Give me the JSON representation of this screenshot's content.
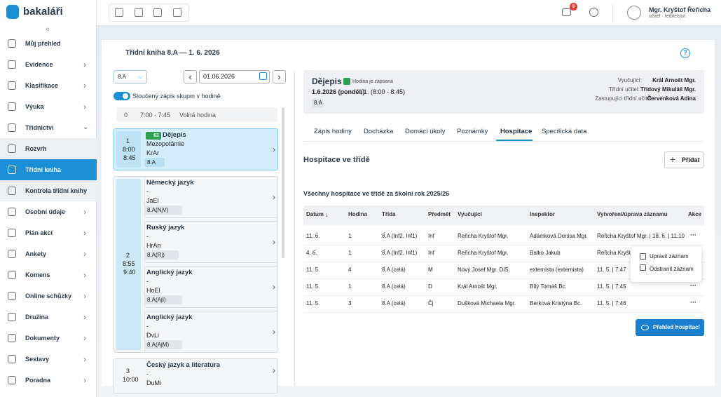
{
  "brand": "bakaláři",
  "sidebar": {
    "items": [
      "Můj přehled",
      "Evidence",
      "Klasifikace",
      "Výuka",
      "Třídnictví",
      "Rozvrh",
      "Třídní kniha",
      "Kontrola třídní knihy",
      "Osobní údaje",
      "Plán akcí",
      "Ankety",
      "Komens",
      "Online schůzky",
      "Družina",
      "Dokumenty",
      "Sestavy",
      "Poradna"
    ]
  },
  "topbar": {
    "notification_count": "9",
    "user_name": "Mgr. Kryštof Řeřicha",
    "user_role": "učitel · ředitelství"
  },
  "page": {
    "title": "Třídní kniha 8.A  —  1. 6. 2026",
    "class_select": "8.A",
    "date": "01.06.2026",
    "toggle_label": "Sloučený zápis skupin v hodině"
  },
  "lessons": [
    {
      "number": "0",
      "time": "7:00 - 7:45",
      "note": "Volná hodina"
    },
    {
      "number": "1",
      "start": "8:00",
      "end": "8:45",
      "entries": [
        {
          "badge": "63",
          "subject": "Dějepis",
          "topic": "Mezopotámie",
          "teacher": "KrAr",
          "group": "8.A"
        }
      ]
    },
    {
      "number": "2",
      "start": "8:55",
      "end": "9:40",
      "entries": [
        {
          "subject": "Německý jazyk",
          "topic": "-",
          "teacher": "JaEl",
          "group": "8.A(NjV)"
        },
        {
          "subject": "Ruský jazyk",
          "topic": "-",
          "teacher": "HrAn",
          "group": "8.A(Rj)"
        },
        {
          "subject": "Anglický jazyk",
          "topic": "-",
          "teacher": "HoEl",
          "group": "8.A(AjI)"
        },
        {
          "subject": "Anglický jazyk",
          "topic": "-",
          "teacher": "DvLi",
          "group": "8.A(AjM)"
        }
      ]
    },
    {
      "number": "3",
      "start": "10:00",
      "entries": [
        {
          "subject": "Český jazyk a literatura",
          "topic": "-",
          "teacher": "DuMi"
        }
      ]
    }
  ],
  "detail": {
    "subject": "Dějepis",
    "status": "Hodina je zapsaná",
    "date": "1.6.2026 (pondělí)",
    "lesson": ", 1. (8:00 - 8:45)",
    "group": "8.A",
    "staff": [
      [
        "Vyučující:",
        "Král Arnošt Mgr."
      ],
      [
        "Třídní učitel:",
        "Třídový Mikuláš Mgr."
      ],
      [
        "Zastupující třídní učitel:",
        "Červenková Adina"
      ]
    ]
  },
  "tabs": [
    "Zápis hodiny",
    "Docházka",
    "Domácí úkoly",
    "Poznámky",
    "Hospitace",
    "Specifická data"
  ],
  "section": {
    "title": "Hospitace ve třídě",
    "add_button": "Přidat",
    "subtitle": "Všechny hospitace ve třídě za školní rok 2025/26",
    "overview_button": "Přehled hospitací"
  },
  "table": {
    "headers": [
      "Datum",
      "Hodina",
      "Třída",
      "Předmět",
      "Vyučující",
      "Inspektor",
      "Vytvoření/úprava záznamu",
      "Akce"
    ],
    "rows": [
      [
        "11. 6.",
        "1",
        "8.A (Inf2, Inf1)",
        "Inf",
        "Řeřicha Kryštof Mgr.",
        "Adámková Denisa Mgr.",
        "Řeřicha Kryštof Mgr. | 18. 6. | 11:10"
      ],
      [
        "4. 6.",
        "1",
        "8.A (Inf2, Inf1)",
        "Inf",
        "Řeřicha Kryštof Mgr.",
        "Balko Jakub",
        "Řeřicha Kryštof"
      ],
      [
        "11. 5.",
        "4",
        "8.A (celá)",
        "M",
        "Nový Josef Mgr. DiS.",
        "externista (externista)",
        "11. 5. | 7:47"
      ],
      [
        "11. 5.",
        "1",
        "8.A (celá)",
        "D",
        "Král Arnošt Mgr.",
        "Bílý Tomáš Bc.",
        "11. 5. | 7:45"
      ],
      [
        "11. 5.",
        "3",
        "8.A (celá)",
        "Čj",
        "Dušková Michaela Mgr.",
        "Berková Kristýna Bc.",
        "11. 5. | 7:46"
      ]
    ]
  },
  "context_menu": [
    "Upravit záznam",
    "Odstranit záznam"
  ]
}
